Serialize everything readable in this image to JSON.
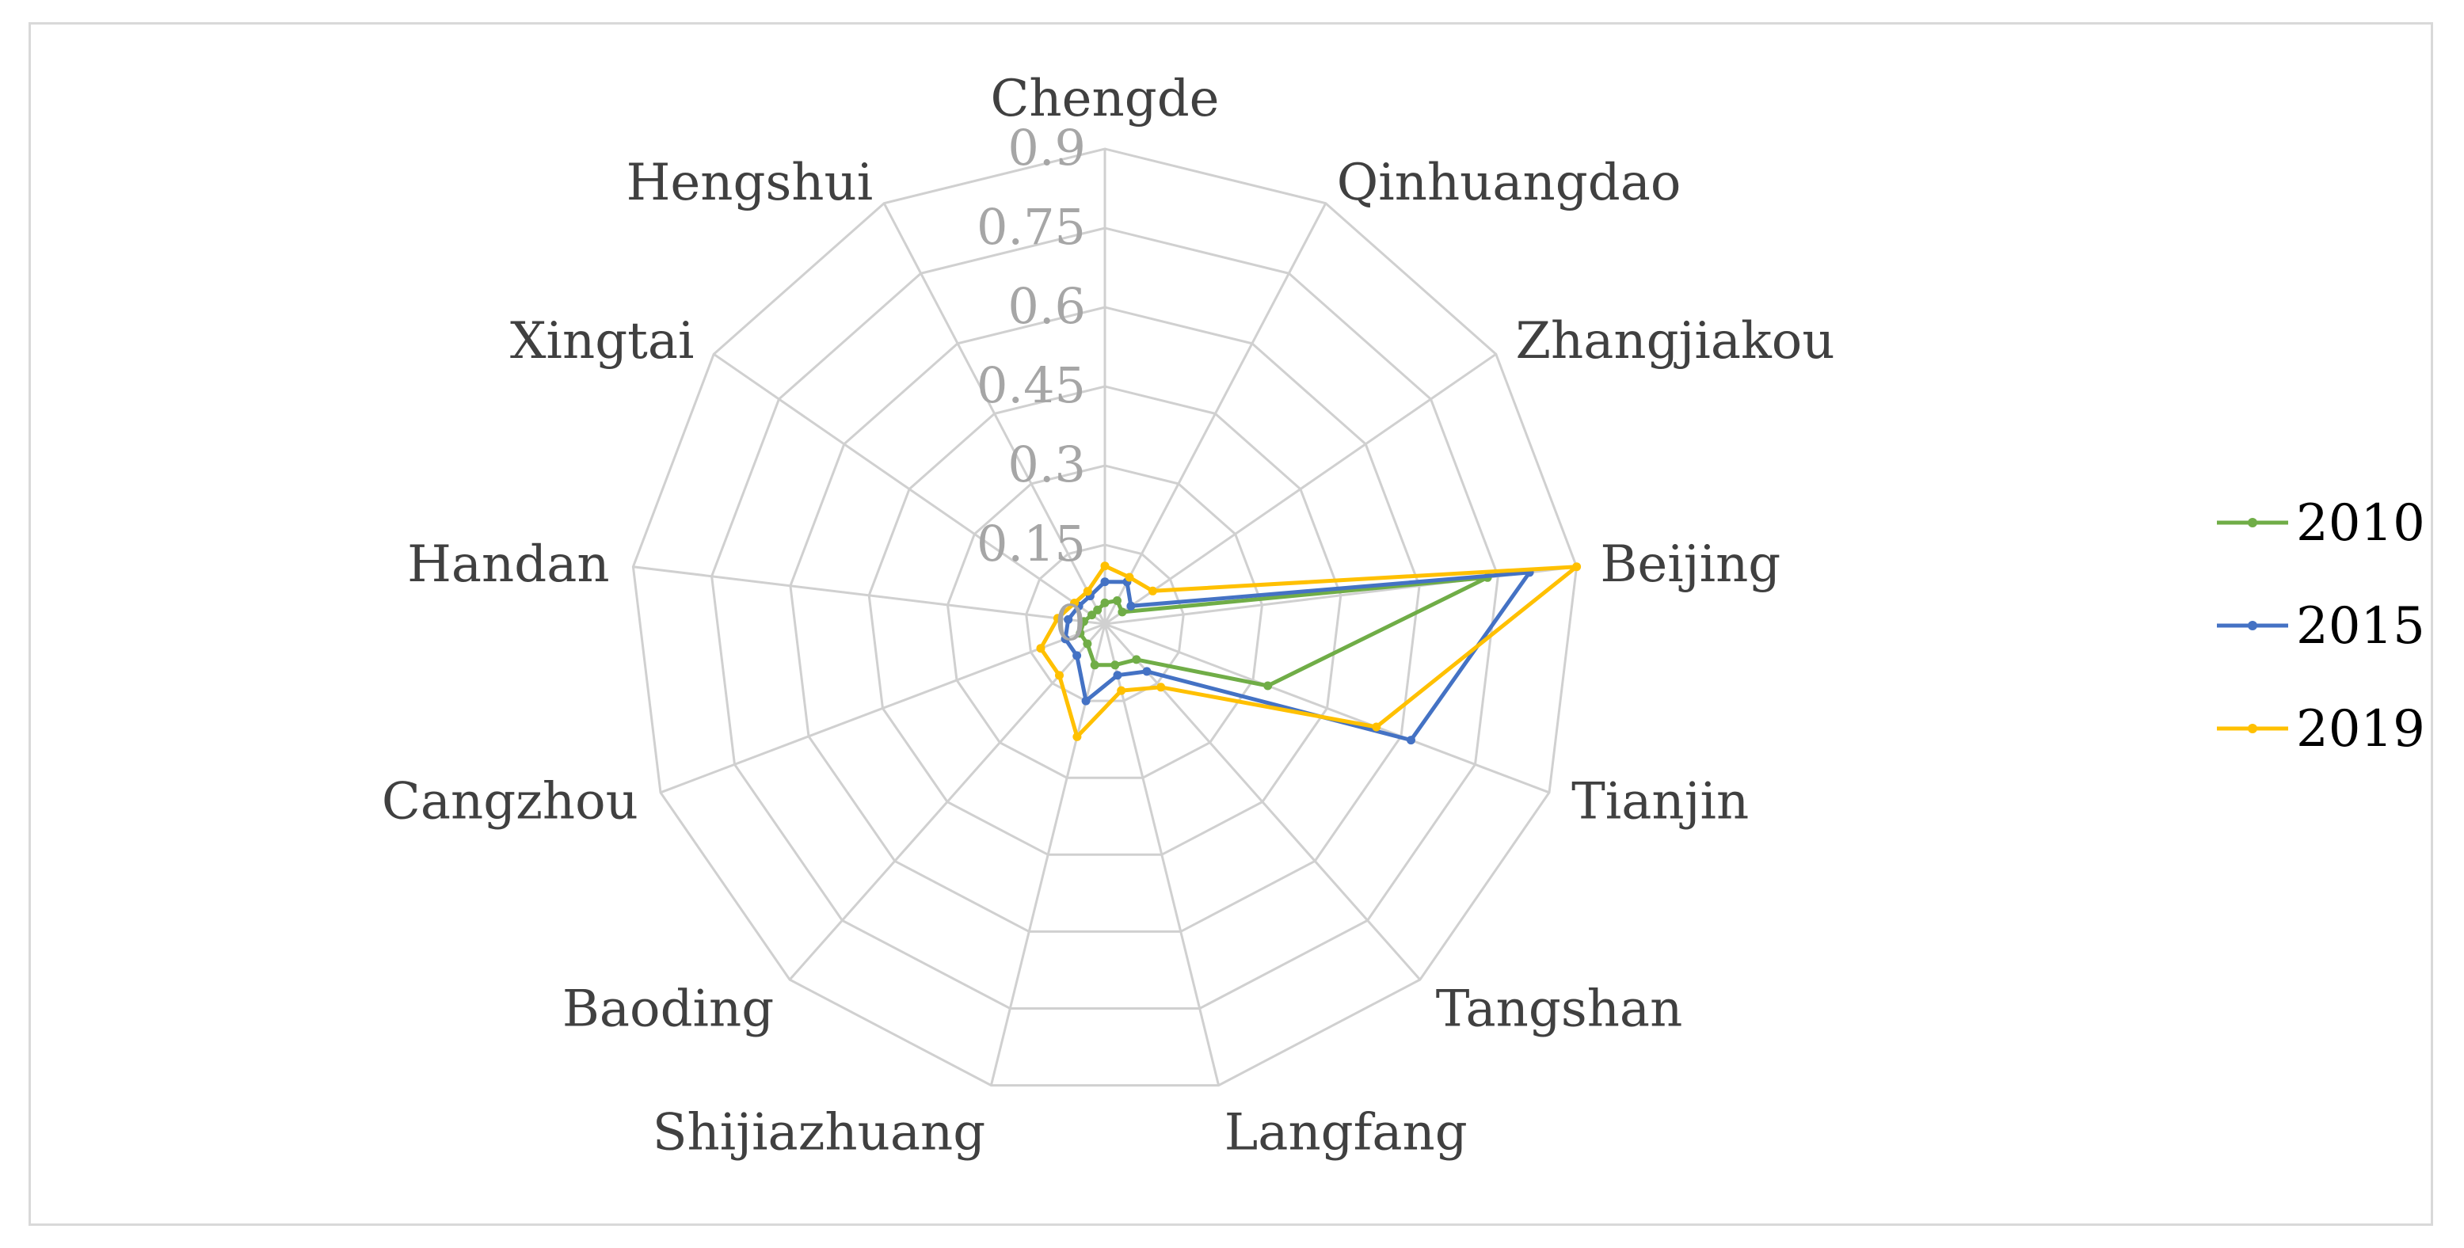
{
  "chart_data": {
    "type": "radar",
    "categories": [
      "Chengde",
      "Qinhuangdao",
      "Zhangjiakou",
      "Beijing",
      "Tianjin",
      "Tangshan",
      "Langfang",
      "Shijiazhuang",
      "Baoding",
      "Cangzhou",
      "Handan",
      "Xingtai",
      "Hengshui"
    ],
    "ticks": [
      "0",
      "0.15",
      "0.3",
      "0.45",
      "0.6",
      "0.75",
      "0.9"
    ],
    "rmax": 0.9,
    "grid": true,
    "legend_position": "right",
    "series": [
      {
        "name": "2010",
        "color": "#70ad47",
        "values": [
          0.04,
          0.05,
          0.04,
          0.73,
          0.33,
          0.09,
          0.08,
          0.08,
          0.05,
          0.05,
          0.04,
          0.03,
          0.03
        ]
      },
      {
        "name": "2015",
        "color": "#4472c4",
        "values": [
          0.08,
          0.09,
          0.06,
          0.81,
          0.62,
          0.12,
          0.1,
          0.15,
          0.08,
          0.08,
          0.07,
          0.06,
          0.06
        ]
      },
      {
        "name": "2019",
        "color": "#ffc000",
        "values": [
          0.11,
          0.1,
          0.11,
          0.9,
          0.55,
          0.16,
          0.13,
          0.22,
          0.13,
          0.13,
          0.09,
          0.07,
          0.07
        ]
      }
    ]
  }
}
